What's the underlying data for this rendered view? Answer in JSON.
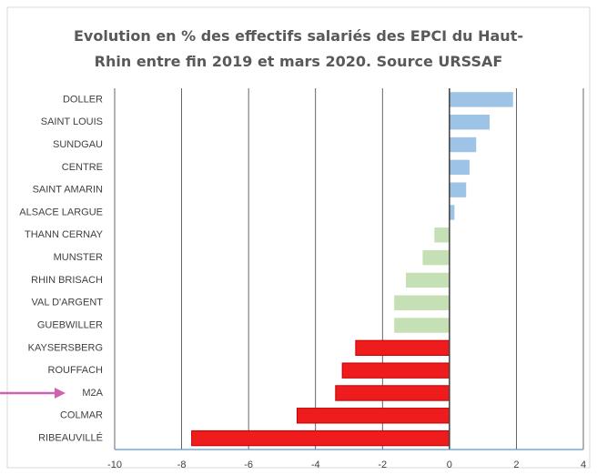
{
  "chart_data": {
    "type": "hbar",
    "title": "Evolution en % des effectifs salariés des EPCI du Haut-Rhin entre fin 2019 et mars 2020. Source URSSAF",
    "categories": [
      "DOLLER",
      "SAINT LOUIS",
      "SUNDGAU",
      "CENTRE",
      "SAINT AMARIN",
      "ALSACE LARGUE",
      "THANN CERNAY",
      "MUNSTER",
      "RHIN BRISACH",
      "VAL D'ARGENT",
      "GUEBWILLER",
      "KAYSERSBERG",
      "ROUFFACH",
      "M2A",
      "COLMAR",
      "RIBEAUVILLÉ"
    ],
    "values": [
      1.9,
      1.2,
      0.8,
      0.6,
      0.5,
      0.15,
      -0.45,
      -0.8,
      -1.3,
      -1.65,
      -1.65,
      -2.8,
      -3.2,
      -3.4,
      -4.55,
      -7.7
    ],
    "colors": [
      "#9dc3e6",
      "#9dc3e6",
      "#9dc3e6",
      "#9dc3e6",
      "#9dc3e6",
      "#9dc3e6",
      "#c5e0b4",
      "#c5e0b4",
      "#c5e0b4",
      "#c5e0b4",
      "#c5e0b4",
      "#ee1c1c",
      "#ee1c1c",
      "#ee1c1c",
      "#ee1c1c",
      "#ee1c1c"
    ],
    "xlim": [
      -10,
      4
    ],
    "xticks": [
      -10,
      -8,
      -6,
      -4,
      -2,
      0,
      2,
      4
    ],
    "grid": true
  }
}
